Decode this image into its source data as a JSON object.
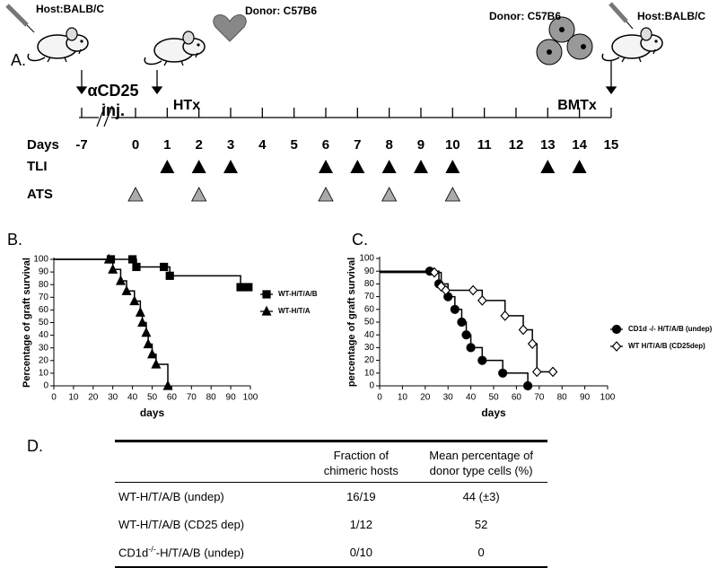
{
  "panel_a": {
    "label": "A.",
    "host_left": "Host:BALB/C",
    "donor_left": "Donor: C57B6",
    "anti_cd25_lines": [
      "αCD25",
      "inj."
    ],
    "htx": "HTx",
    "donor_right": "Donor: C57B6",
    "host_right": "Host:BALB/C",
    "bmtx": "BMTx",
    "days_label": "Days",
    "days": [
      -7,
      0,
      1,
      2,
      3,
      4,
      5,
      6,
      7,
      8,
      9,
      10,
      11,
      12,
      13,
      14,
      15
    ],
    "tli_label": "TLI",
    "tli_days": [
      1,
      2,
      3,
      6,
      7,
      8,
      9,
      10,
      13,
      14
    ],
    "ats_label": "ATS",
    "ats_days": [
      0,
      2,
      6,
      8,
      10
    ]
  },
  "chart_data": [
    {
      "type": "line",
      "step": true,
      "panel_label": "B.",
      "ylabel": "Percentage of graft survival",
      "xlabel": "days",
      "xlim": [
        0,
        100
      ],
      "xticks": [
        0,
        10,
        20,
        30,
        40,
        50,
        60,
        70,
        80,
        90,
        100
      ],
      "ylim": [
        0,
        100
      ],
      "yticks": [
        0,
        10,
        20,
        30,
        40,
        50,
        60,
        70,
        80,
        90,
        100
      ],
      "series": [
        {
          "name": "WT-H/T/A/B",
          "color": "#000000",
          "marker": "square",
          "x": [
            29,
            40,
            42,
            56,
            59,
            95,
            99
          ],
          "values": [
            100,
            100,
            94,
            94,
            87,
            78,
            78
          ]
        },
        {
          "name": "WT-H/T/A",
          "color": "#000000",
          "marker": "triangle",
          "x": [
            28,
            30,
            34,
            37,
            41,
            44,
            45,
            47,
            48,
            50,
            52,
            58
          ],
          "values": [
            100,
            92,
            83,
            75,
            67,
            58,
            50,
            42,
            33,
            25,
            17,
            0
          ]
        }
      ]
    },
    {
      "type": "line",
      "step": true,
      "panel_label": "C.",
      "ylabel": "percentage of graft survival",
      "xlabel": "days",
      "xlim": [
        0,
        100
      ],
      "xticks": [
        0,
        10,
        20,
        30,
        40,
        50,
        60,
        70,
        80,
        90,
        100
      ],
      "ylim": [
        0,
        100
      ],
      "yticks": [
        0,
        10,
        20,
        30,
        40,
        50,
        60,
        70,
        80,
        90,
        100
      ],
      "series": [
        {
          "name": "CD1d -/- H/T/A/B (undep)",
          "color": "#000000",
          "marker": "circle",
          "x": [
            22,
            26,
            30,
            33,
            36,
            38,
            40,
            45,
            54,
            65
          ],
          "values": [
            90,
            80,
            70,
            60,
            50,
            40,
            30,
            20,
            10,
            0
          ]
        },
        {
          "name": "WT  H/T/A/B (CD25dep)",
          "color": "#000000",
          "marker": "diamond",
          "x": [
            24,
            27,
            29,
            41,
            45,
            55,
            63,
            67,
            69,
            76
          ],
          "values": [
            89,
            78,
            75,
            75,
            67,
            55,
            44,
            33,
            11,
            11
          ]
        }
      ]
    }
  ],
  "panel_d": {
    "label": "D.",
    "header": {
      "fraction": "Fraction of chimeric hosts",
      "mean": "Mean percentage of donor type cells (%)"
    },
    "rows": [
      {
        "label": "WT-H/T/A/B (undep)",
        "fraction": "16/19",
        "mean": "44 (±3)"
      },
      {
        "label": "WT-H/T/A/B (CD25 dep)",
        "fraction": "1/12",
        "mean": 52
      },
      {
        "label": {
          "base": "CD1d",
          "sup": "-/-",
          "rest": "-H/T/A/B (undep)"
        },
        "fraction": "0/10",
        "mean": 0
      }
    ]
  }
}
